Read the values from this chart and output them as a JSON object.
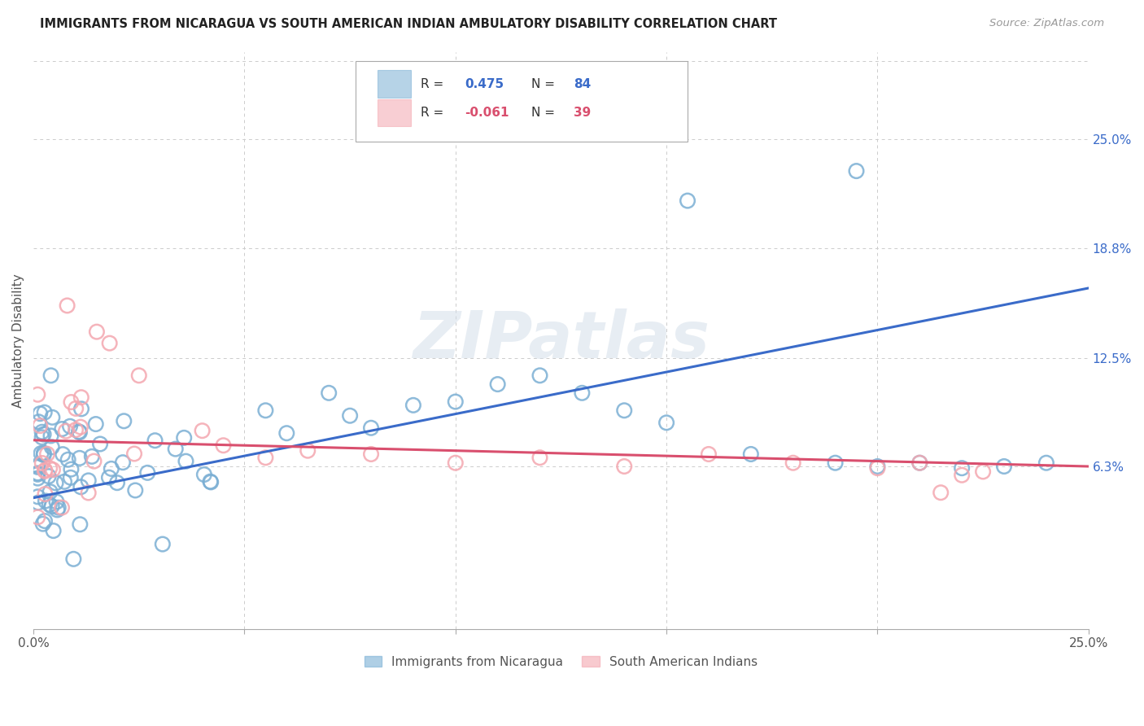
{
  "title": "IMMIGRANTS FROM NICARAGUA VS SOUTH AMERICAN INDIAN AMBULATORY DISABILITY CORRELATION CHART",
  "source": "Source: ZipAtlas.com",
  "ylabel": "Ambulatory Disability",
  "xlim": [
    0.0,
    0.25
  ],
  "ylim": [
    -0.03,
    0.3
  ],
  "xtick_positions": [
    0.0,
    0.05,
    0.1,
    0.15,
    0.2,
    0.25
  ],
  "xtick_labels": [
    "0.0%",
    "",
    "",
    "",
    "",
    "25.0%"
  ],
  "ytick_values": [
    0.063,
    0.125,
    0.188,
    0.25
  ],
  "ytick_labels": [
    "6.3%",
    "12.5%",
    "18.8%",
    "25.0%"
  ],
  "blue_R": "0.475",
  "blue_N": "84",
  "pink_R": "-0.061",
  "pink_N": "39",
  "blue_color": "#7BAFD4",
  "pink_color": "#F4A7B0",
  "blue_line_color": "#3A6BC9",
  "pink_line_color": "#D94F6E",
  "legend_label_blue": "Immigrants from Nicaragua",
  "legend_label_pink": "South American Indians",
  "legend_text_color": "#3A6BC9",
  "watermark": "ZIPatlas",
  "background_color": "#ffffff",
  "grid_color": "#cccccc",
  "title_color": "#222222",
  "source_color": "#999999",
  "blue_line_start_y": 0.045,
  "blue_line_end_y": 0.165,
  "pink_line_start_y": 0.078,
  "pink_line_end_y": 0.063
}
